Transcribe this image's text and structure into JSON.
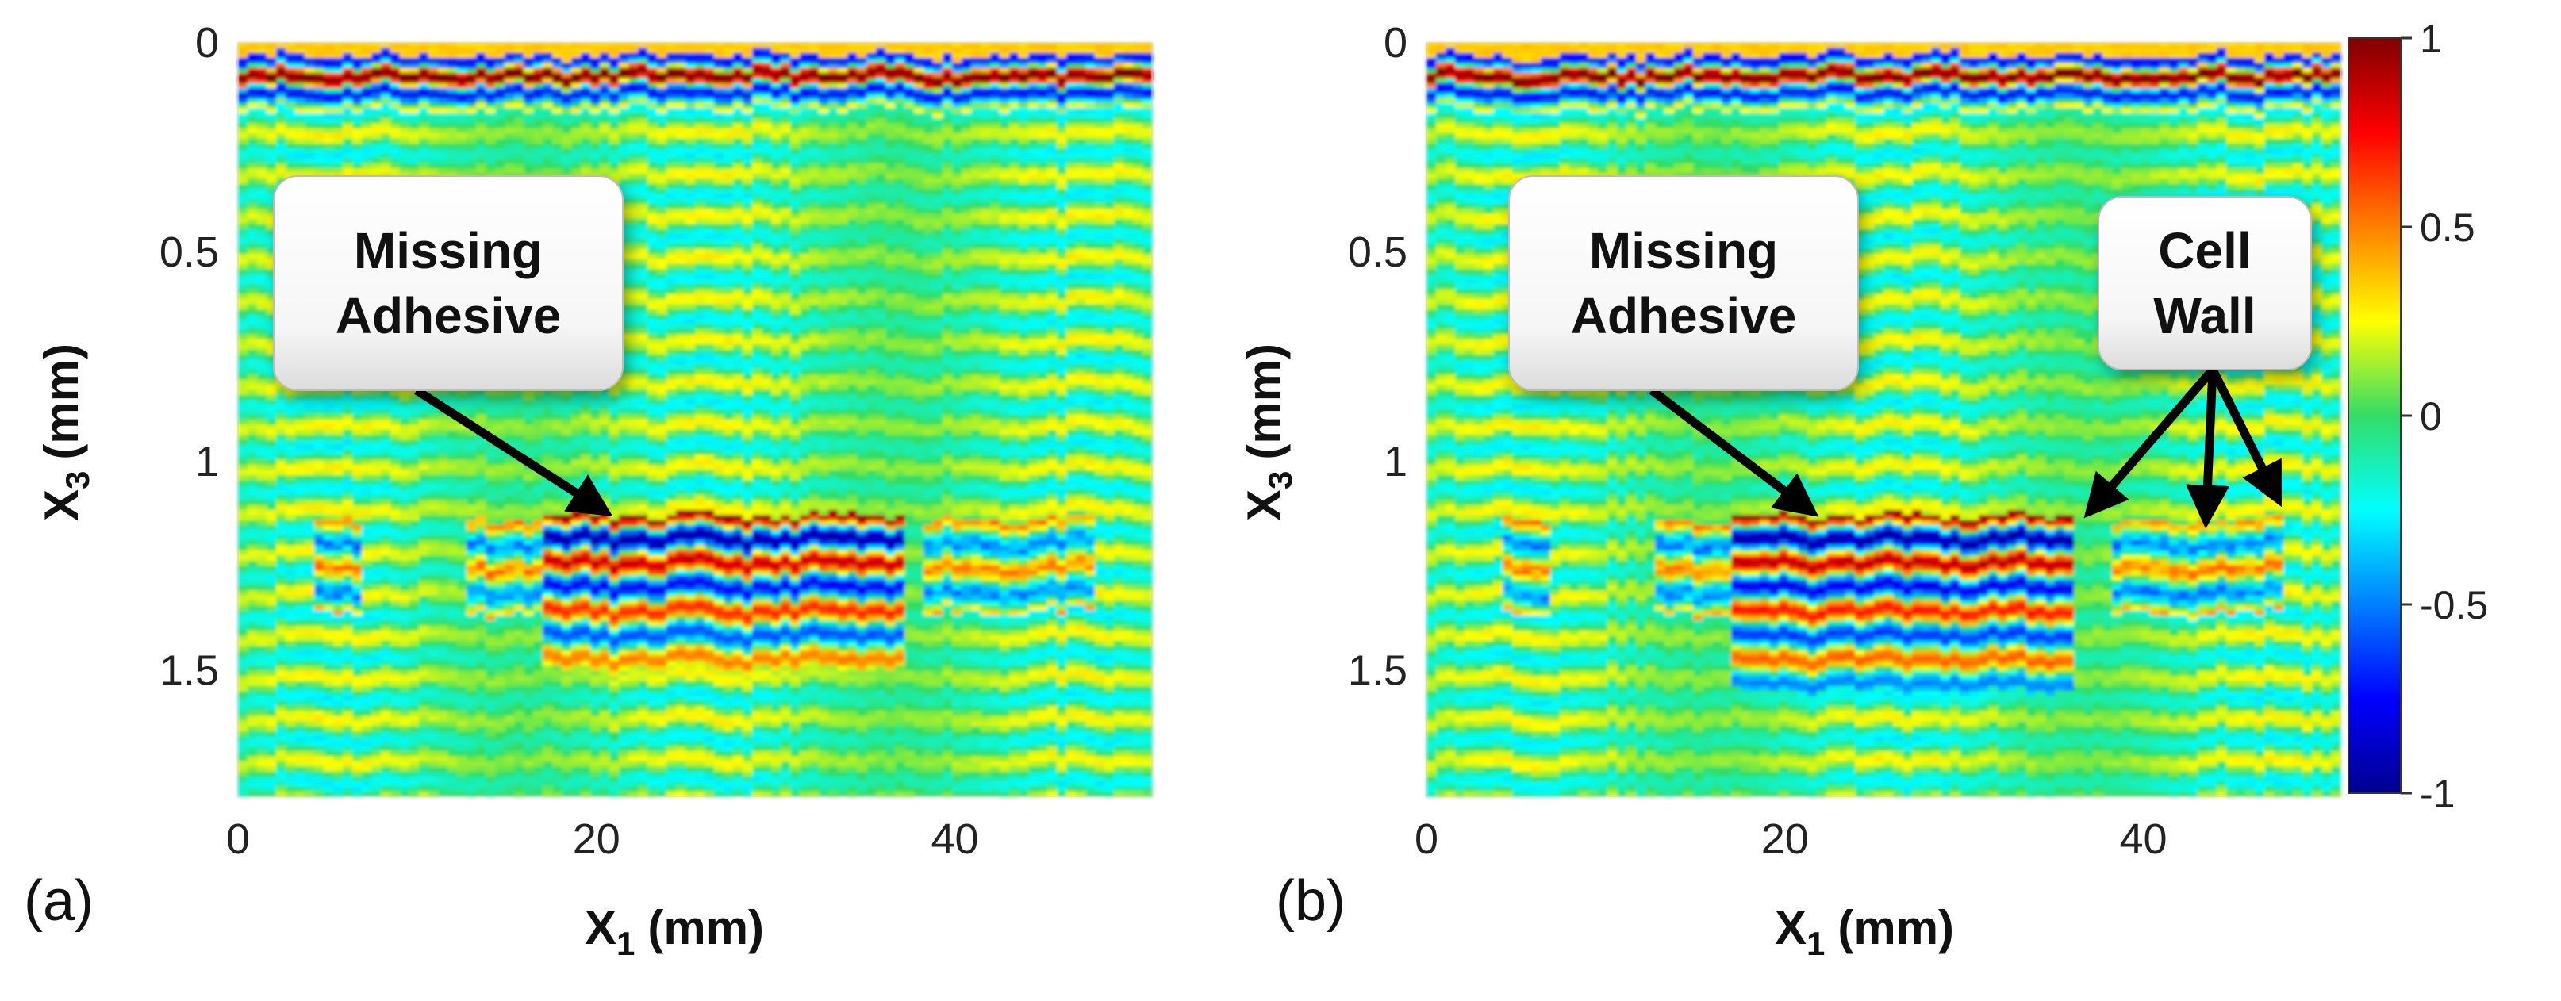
{
  "chart_data": [
    {
      "type": "heatmap",
      "panel_label": "(a)",
      "xlabel": "X",
      "xlabel_sub": "1",
      "xlabel_unit": "(mm)",
      "ylabel": "X",
      "ylabel_sub": "3",
      "ylabel_unit": "(mm)",
      "xlim": [
        0,
        51
      ],
      "ylim": [
        0,
        1.8
      ],
      "xticks": [
        0,
        20,
        40
      ],
      "yticks": [
        0,
        0.5,
        1,
        1.5
      ],
      "ytick_labels": [
        "0",
        "0.5",
        "1",
        "1.5"
      ],
      "value_range": [
        -1,
        1
      ],
      "front_wall_depth_mm": 0.08,
      "defect": {
        "x_start": 17,
        "x_end": 37,
        "depth_start": 1.13,
        "depth_end": 1.5
      },
      "annotations": [
        {
          "lines": [
            "Missing",
            "Adhesive"
          ],
          "arrow_targets": [
            {
              "x": 20.5,
              "y": 1.12
            }
          ]
        }
      ]
    },
    {
      "type": "heatmap",
      "panel_label": "(b)",
      "xlabel": "X",
      "xlabel_sub": "1",
      "xlabel_unit": "(mm)",
      "ylabel": "X",
      "ylabel_sub": "3",
      "ylabel_unit": "(mm)",
      "xlim": [
        0,
        51
      ],
      "ylim": [
        0,
        1.8
      ],
      "xticks": [
        0,
        20,
        40
      ],
      "yticks": [
        0,
        0.5,
        1,
        1.5
      ],
      "ytick_labels": [
        "0",
        "0.5",
        "1",
        "1.5"
      ],
      "value_range": [
        -1,
        1
      ],
      "front_wall_depth_mm": 0.08,
      "defect": {
        "x_start": 17,
        "x_end": 36,
        "depth_start": 1.13,
        "depth_end": 1.55
      },
      "annotations": [
        {
          "lines": [
            "Missing",
            "Adhesive"
          ],
          "arrow_targets": [
            {
              "x": 21.5,
              "y": 1.12
            }
          ]
        },
        {
          "lines": [
            "Cell",
            "Wall"
          ],
          "arrow_targets": [
            {
              "x": 37,
              "y": 1.12
            },
            {
              "x": 43.5,
              "y": 1.14
            },
            {
              "x": 47.5,
              "y": 1.09
            }
          ]
        }
      ]
    }
  ],
  "colorbar": {
    "colormap": "jet",
    "min": -1,
    "max": 1,
    "ticks": [
      1,
      0.5,
      0,
      -0.5,
      -1
    ],
    "tick_labels": [
      "1",
      "0.5",
      "0",
      "-0.5",
      "-1"
    ]
  },
  "colors": {
    "background_field": "#33dd66",
    "callout_fill": "#ffffff",
    "arrow": "#000000"
  }
}
